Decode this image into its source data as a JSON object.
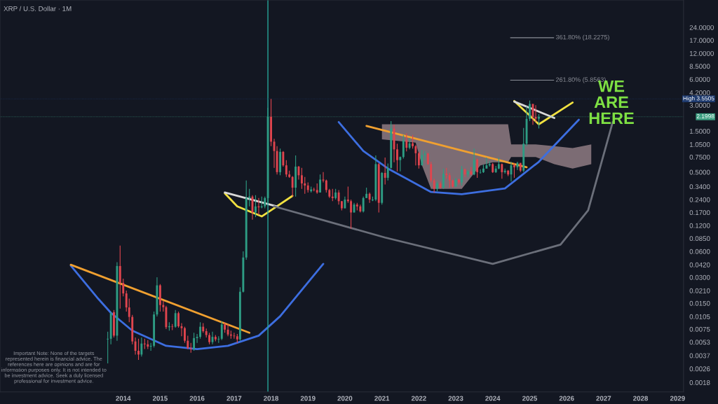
{
  "chart_data": {
    "type": "candlestick",
    "title": "XRP / U.S. Dollar · 1M",
    "x": [
      "2013-08",
      "2013-09",
      "2013-10",
      "2013-11",
      "2013-12",
      "2014-01",
      "2014-02",
      "2014-03",
      "2014-04",
      "2014-05",
      "2014-06",
      "2014-07",
      "2014-08",
      "2014-09",
      "2014-10",
      "2014-11",
      "2014-12",
      "2015-01",
      "2015-02",
      "2015-03",
      "2015-04",
      "2015-05",
      "2015-06",
      "2015-07",
      "2015-08",
      "2015-09",
      "2015-10",
      "2015-11",
      "2015-12",
      "2016-01",
      "2016-02",
      "2016-03",
      "2016-04",
      "2016-05",
      "2016-06",
      "2016-07",
      "2016-08",
      "2016-09",
      "2016-10",
      "2016-11",
      "2016-12",
      "2017-01",
      "2017-02",
      "2017-03",
      "2017-04",
      "2017-05",
      "2017-06",
      "2017-07",
      "2017-08",
      "2017-09",
      "2017-10",
      "2017-11",
      "2017-12",
      "2018-01",
      "2018-02",
      "2018-03",
      "2018-04",
      "2018-05",
      "2018-06",
      "2018-07",
      "2018-08",
      "2018-09",
      "2018-10",
      "2018-11",
      "2018-12",
      "2019-01",
      "2019-02",
      "2019-03",
      "2019-04",
      "2019-05",
      "2019-06",
      "2019-07",
      "2019-08",
      "2019-09",
      "2019-10",
      "2019-11",
      "2019-12",
      "2020-01",
      "2020-02",
      "2020-03",
      "2020-04",
      "2020-05",
      "2020-06",
      "2020-07",
      "2020-08",
      "2020-09",
      "2020-10",
      "2020-11",
      "2020-12",
      "2021-01",
      "2021-02",
      "2021-03",
      "2021-04",
      "2021-05",
      "2021-06",
      "2021-07",
      "2021-08",
      "2021-09",
      "2021-10",
      "2021-11",
      "2021-12",
      "2022-01",
      "2022-02",
      "2022-03",
      "2022-04",
      "2022-05",
      "2022-06",
      "2022-07",
      "2022-08",
      "2022-09",
      "2022-10",
      "2022-11",
      "2022-12",
      "2023-01",
      "2023-02",
      "2023-03",
      "2023-04",
      "2023-05",
      "2023-06",
      "2023-07",
      "2023-08",
      "2023-09",
      "2023-10",
      "2023-11",
      "2023-12",
      "2024-01",
      "2024-02",
      "2024-03",
      "2024-04",
      "2024-05",
      "2024-06",
      "2024-07",
      "2024-08",
      "2024-09",
      "2024-10",
      "2024-11",
      "2024-12",
      "2025-01",
      "2025-02",
      "2025-03",
      "2025-04"
    ],
    "ohlc": [
      [
        0.0057,
        0.007,
        0.003,
        0.0058
      ],
      [
        0.0058,
        0.012,
        0.005,
        0.0115
      ],
      [
        0.0118,
        0.0125,
        0.006,
        0.0063
      ],
      [
        0.0063,
        0.045,
        0.0055,
        0.0406
      ],
      [
        0.0406,
        0.07,
        0.013,
        0.0258
      ],
      [
        0.0258,
        0.029,
        0.018,
        0.0195
      ],
      [
        0.0195,
        0.021,
        0.012,
        0.0134
      ],
      [
        0.0134,
        0.017,
        0.009,
        0.0104
      ],
      [
        0.0104,
        0.011,
        0.005,
        0.0054
      ],
      [
        0.0054,
        0.006,
        0.0038,
        0.0042
      ],
      [
        0.0042,
        0.0058,
        0.0033,
        0.0038
      ],
      [
        0.0038,
        0.006,
        0.0036,
        0.0051
      ],
      [
        0.0051,
        0.0058,
        0.0044,
        0.005
      ],
      [
        0.005,
        0.0056,
        0.0044,
        0.0047
      ],
      [
        0.0047,
        0.0052,
        0.0042,
        0.0048
      ],
      [
        0.0048,
        0.012,
        0.0046,
        0.0111
      ],
      [
        0.0111,
        0.03,
        0.0105,
        0.0242
      ],
      [
        0.0242,
        0.025,
        0.012,
        0.0143
      ],
      [
        0.0143,
        0.016,
        0.012,
        0.0135
      ],
      [
        0.0135,
        0.014,
        0.0075,
        0.0079
      ],
      [
        0.0079,
        0.009,
        0.0072,
        0.0081
      ],
      [
        0.0081,
        0.0086,
        0.0073,
        0.008
      ],
      [
        0.008,
        0.0125,
        0.0078,
        0.0115
      ],
      [
        0.0115,
        0.012,
        0.0078,
        0.0081
      ],
      [
        0.0081,
        0.0088,
        0.0062,
        0.0077
      ],
      [
        0.0077,
        0.008,
        0.0052,
        0.0055
      ],
      [
        0.0055,
        0.0063,
        0.0044,
        0.0045
      ],
      [
        0.0045,
        0.0052,
        0.004,
        0.0044
      ],
      [
        0.0044,
        0.0068,
        0.0042,
        0.0059
      ],
      [
        0.0059,
        0.0066,
        0.0052,
        0.0061
      ],
      [
        0.0061,
        0.009,
        0.0058,
        0.008
      ],
      [
        0.008,
        0.0088,
        0.0068,
        0.0071
      ],
      [
        0.0071,
        0.0076,
        0.006,
        0.0064
      ],
      [
        0.0064,
        0.0068,
        0.005,
        0.0053
      ],
      [
        0.0053,
        0.007,
        0.005,
        0.0061
      ],
      [
        0.0061,
        0.0064,
        0.0054,
        0.0057
      ],
      [
        0.0057,
        0.0062,
        0.0052,
        0.0058
      ],
      [
        0.0058,
        0.0092,
        0.0056,
        0.0085
      ],
      [
        0.0085,
        0.009,
        0.0068,
        0.0074
      ],
      [
        0.0074,
        0.0086,
        0.0062,
        0.0065
      ],
      [
        0.0065,
        0.0072,
        0.0058,
        0.0063
      ],
      [
        0.0063,
        0.0068,
        0.0058,
        0.0062
      ],
      [
        0.0062,
        0.0066,
        0.0052,
        0.0057
      ],
      [
        0.0057,
        0.023,
        0.0055,
        0.0204
      ],
      [
        0.0204,
        0.06,
        0.02,
        0.051
      ],
      [
        0.051,
        0.4,
        0.048,
        0.25
      ],
      [
        0.25,
        0.32,
        0.2,
        0.26
      ],
      [
        0.26,
        0.27,
        0.14,
        0.17
      ],
      [
        0.17,
        0.27,
        0.15,
        0.2
      ],
      [
        0.2,
        0.25,
        0.16,
        0.195
      ],
      [
        0.195,
        0.26,
        0.19,
        0.2
      ],
      [
        0.2,
        0.26,
        0.19,
        0.25
      ],
      [
        0.25,
        2.8,
        0.22,
        2.2
      ],
      [
        2.2,
        3.5505,
        1.0,
        1.13
      ],
      [
        1.13,
        1.22,
        0.56,
        0.88
      ],
      [
        0.88,
        1.0,
        0.47,
        0.5
      ],
      [
        0.5,
        0.94,
        0.46,
        0.86
      ],
      [
        0.86,
        0.88,
        0.58,
        0.6
      ],
      [
        0.6,
        0.69,
        0.44,
        0.47
      ],
      [
        0.47,
        0.52,
        0.43,
        0.44
      ],
      [
        0.44,
        0.45,
        0.26,
        0.33
      ],
      [
        0.33,
        0.78,
        0.26,
        0.58
      ],
      [
        0.58,
        0.59,
        0.41,
        0.46
      ],
      [
        0.46,
        0.56,
        0.32,
        0.37
      ],
      [
        0.37,
        0.44,
        0.28,
        0.35
      ],
      [
        0.35,
        0.38,
        0.29,
        0.31
      ],
      [
        0.3,
        0.34,
        0.29,
        0.315
      ],
      [
        0.315,
        0.33,
        0.3,
        0.31
      ],
      [
        0.31,
        0.37,
        0.28,
        0.29
      ],
      [
        0.29,
        0.47,
        0.29,
        0.41
      ],
      [
        0.41,
        0.5,
        0.38,
        0.4
      ],
      [
        0.4,
        0.41,
        0.29,
        0.31
      ],
      [
        0.31,
        0.32,
        0.25,
        0.26
      ],
      [
        0.26,
        0.32,
        0.23,
        0.25
      ],
      [
        0.25,
        0.32,
        0.24,
        0.29
      ],
      [
        0.29,
        0.31,
        0.21,
        0.23
      ],
      [
        0.23,
        0.23,
        0.18,
        0.19
      ],
      [
        0.19,
        0.26,
        0.19,
        0.24
      ],
      [
        0.24,
        0.34,
        0.22,
        0.23
      ],
      [
        0.23,
        0.24,
        0.11,
        0.17
      ],
      [
        0.17,
        0.22,
        0.17,
        0.21
      ],
      [
        0.21,
        0.22,
        0.18,
        0.2
      ],
      [
        0.2,
        0.21,
        0.17,
        0.175
      ],
      [
        0.175,
        0.26,
        0.17,
        0.25
      ],
      [
        0.25,
        0.33,
        0.25,
        0.28
      ],
      [
        0.28,
        0.29,
        0.22,
        0.24
      ],
      [
        0.235,
        0.26,
        0.23,
        0.24
      ],
      [
        0.24,
        0.78,
        0.23,
        0.62
      ],
      [
        0.62,
        0.64,
        0.17,
        0.22
      ],
      [
        0.22,
        0.5,
        0.21,
        0.49
      ],
      [
        0.49,
        0.74,
        0.36,
        0.43
      ],
      [
        0.43,
        0.63,
        0.4,
        0.56
      ],
      [
        0.56,
        1.96,
        0.55,
        1.6
      ],
      [
        1.6,
        1.77,
        0.65,
        0.92
      ],
      [
        0.92,
        1.07,
        0.51,
        0.69
      ],
      [
        0.69,
        0.76,
        0.51,
        0.75
      ],
      [
        0.75,
        1.35,
        0.72,
        1.17
      ],
      [
        1.17,
        1.41,
        0.87,
        0.96
      ],
      [
        0.96,
        1.25,
        0.92,
        1.08
      ],
      [
        1.08,
        1.35,
        0.94,
        1.0
      ],
      [
        1.0,
        1.03,
        0.6,
        0.83
      ],
      [
        0.83,
        0.86,
        0.55,
        0.6
      ],
      [
        0.6,
        0.91,
        0.6,
        0.79
      ],
      [
        0.79,
        0.88,
        0.69,
        0.82
      ],
      [
        0.82,
        0.84,
        0.61,
        0.62
      ],
      [
        0.62,
        0.66,
        0.38,
        0.4
      ],
      [
        0.4,
        0.42,
        0.29,
        0.32
      ],
      [
        0.32,
        0.39,
        0.3,
        0.37
      ],
      [
        0.37,
        0.39,
        0.32,
        0.33
      ],
      [
        0.33,
        0.55,
        0.32,
        0.48
      ],
      [
        0.48,
        0.56,
        0.42,
        0.46
      ],
      [
        0.46,
        0.49,
        0.33,
        0.4
      ],
      [
        0.4,
        0.41,
        0.33,
        0.34
      ],
      [
        0.34,
        0.43,
        0.34,
        0.41
      ],
      [
        0.41,
        0.42,
        0.36,
        0.38
      ],
      [
        0.38,
        0.59,
        0.35,
        0.54
      ],
      [
        0.54,
        0.55,
        0.44,
        0.47
      ],
      [
        0.47,
        0.53,
        0.44,
        0.51
      ],
      [
        0.51,
        0.57,
        0.46,
        0.47
      ],
      [
        0.47,
        0.94,
        0.46,
        0.7
      ],
      [
        0.7,
        0.72,
        0.43,
        0.5
      ],
      [
        0.495,
        0.54,
        0.48,
        0.5
      ],
      [
        0.5,
        0.61,
        0.49,
        0.55
      ],
      [
        0.55,
        0.74,
        0.55,
        0.6
      ],
      [
        0.6,
        0.67,
        0.58,
        0.62
      ],
      [
        0.62,
        0.64,
        0.49,
        0.5
      ],
      [
        0.5,
        0.59,
        0.49,
        0.55
      ],
      [
        0.55,
        0.74,
        0.54,
        0.62
      ],
      [
        0.62,
        0.63,
        0.42,
        0.5
      ],
      [
        0.5,
        0.55,
        0.48,
        0.52
      ],
      [
        0.52,
        0.53,
        0.45,
        0.47
      ],
      [
        0.47,
        0.66,
        0.39,
        0.6
      ],
      [
        0.6,
        0.64,
        0.43,
        0.57
      ],
      [
        0.57,
        0.66,
        0.53,
        0.64
      ],
      [
        0.64,
        0.64,
        0.5,
        0.52
      ],
      [
        0.52,
        1.63,
        0.5,
        1.07
      ],
      [
        1.07,
        2.9,
        1.0,
        2.08
      ],
      [
        2.08,
        3.4,
        1.96,
        3.1
      ],
      [
        3.1,
        3.1,
        1.77,
        2.19
      ],
      [
        2.19,
        3.0,
        1.9,
        2.09
      ],
      [
        2.09,
        2.36,
        1.61,
        2.1998
      ]
    ],
    "series": [
      {
        "type": "line",
        "color": "#3d6ee0",
        "x": [
          "2012-08",
          "2013-05",
          "2013-09",
          "2014-04",
          "2015-03",
          "2016-01",
          "2016-11",
          "2017-09",
          "2018-04",
          "2019-06"
        ],
        "values": [
          0.041,
          0.0168,
          0.0116,
          0.0072,
          0.0048,
          0.0044,
          0.0048,
          0.0063,
          0.0106,
          0.043
        ]
      },
      {
        "type": "line",
        "color": "#f0a030",
        "x": [
          "2012-08",
          "2017-06"
        ],
        "values": [
          0.042,
          0.0068
        ]
      },
      {
        "type": "line",
        "color": "#3d6ee0",
        "x": [
          "2019-11",
          "2020-07",
          "2021-03",
          "2022-05",
          "2023-03",
          "2024-05",
          "2025-04",
          "2026-05"
        ],
        "values": [
          1.91,
          0.88,
          0.551,
          0.294,
          0.277,
          0.323,
          0.66,
          2.03
        ]
      },
      {
        "type": "line",
        "color": "#f0a030",
        "x": [
          "2020-08",
          "2024-12"
        ],
        "values": [
          1.72,
          0.57
        ]
      },
      {
        "type": "line",
        "color": "#f0e040",
        "x": [
          "2016-10",
          "2017-02",
          "2017-10",
          "2018-08"
        ],
        "values": [
          0.284,
          0.2,
          0.153,
          0.265
        ]
      },
      {
        "type": "line",
        "color": "#d8d8d8",
        "x": [
          "2016-10",
          "2018-03"
        ],
        "values": [
          0.29,
          0.2
        ]
      },
      {
        "type": "line",
        "color": "#f0e040",
        "x": [
          "2024-08",
          "2025-04",
          "2026-03"
        ],
        "values": [
          3.36,
          1.8,
          3.22
        ]
      },
      {
        "type": "line",
        "color": "#d8d8d8",
        "x": [
          "2024-08",
          "2025-09"
        ],
        "values": [
          3.3,
          2.13
        ]
      },
      {
        "type": "line",
        "color": "#6b6f7a",
        "x": [
          "2018-02",
          "2021-02",
          "2024-01",
          "2025-11",
          "2026-08",
          "2027-04"
        ],
        "values": [
          0.2,
          0.087,
          0.043,
          0.072,
          0.18,
          1.91
        ]
      }
    ],
    "log": true,
    "ylim": [
      0.0014,
      50
    ],
    "yticks": [
      {
        "value": 24,
        "label": "24.0000"
      },
      {
        "value": 17,
        "label": "17.0000"
      },
      {
        "value": 12,
        "label": "12.0000"
      },
      {
        "value": 8.5,
        "label": "8.5000"
      },
      {
        "value": 6,
        "label": "6.0000"
      },
      {
        "value": 4.2,
        "label": "4.2000"
      },
      {
        "value": 3,
        "label": "3.0000"
      },
      {
        "value": 1.5,
        "label": "1.5000"
      },
      {
        "value": 1.05,
        "label": "1.0500"
      },
      {
        "value": 0.75,
        "label": "0.7500"
      },
      {
        "value": 0.5,
        "label": "0.5000"
      },
      {
        "value": 0.34,
        "label": "0.3400"
      },
      {
        "value": 0.24,
        "label": "0.2400"
      },
      {
        "value": 0.17,
        "label": "0.1700"
      },
      {
        "value": 0.12,
        "label": "0.1200"
      },
      {
        "value": 0.085,
        "label": "0.0850"
      },
      {
        "value": 0.06,
        "label": "0.0600"
      },
      {
        "value": 0.042,
        "label": "0.0420"
      },
      {
        "value": 0.03,
        "label": "0.0300"
      },
      {
        "value": 0.021,
        "label": "0.0210"
      },
      {
        "value": 0.015,
        "label": "0.0150"
      },
      {
        "value": 0.0105,
        "label": "0.0105"
      },
      {
        "value": 0.0075,
        "label": "0.0075"
      },
      {
        "value": 0.0053,
        "label": "0.0053"
      },
      {
        "value": 0.0037,
        "label": "0.0037"
      },
      {
        "value": 0.0026,
        "label": "0.0026"
      },
      {
        "value": 0.0018,
        "label": "0.0018"
      }
    ],
    "xlim": [
      "2010-09",
      "2029-03"
    ],
    "xticks": [
      {
        "value": "2014-01",
        "label": "2014"
      },
      {
        "value": "2015-01",
        "label": "2015"
      },
      {
        "value": "2016-01",
        "label": "2016"
      },
      {
        "value": "2017-01",
        "label": "2017"
      },
      {
        "value": "2018-01",
        "label": "2018"
      },
      {
        "value": "2019-01",
        "label": "2019"
      },
      {
        "value": "2020-01",
        "label": "2020"
      },
      {
        "value": "2021-01",
        "label": "2021"
      },
      {
        "value": "2022-01",
        "label": "2022"
      },
      {
        "value": "2023-01",
        "label": "2023"
      },
      {
        "value": "2024-01",
        "label": "2024"
      },
      {
        "value": "2025-01",
        "label": "2025"
      },
      {
        "value": "2026-01",
        "label": "2026"
      },
      {
        "value": "2027-01",
        "label": "2027"
      },
      {
        "value": "2028-01",
        "label": "2028"
      },
      {
        "value": "2029-01",
        "label": "2029"
      }
    ],
    "ref_lines": [
      {
        "axis": "x",
        "value": "2017-12",
        "color": "#26a69a"
      },
      {
        "axis": "y",
        "value": 3.5505,
        "label": "High 3.5505",
        "color": "#1e3a6e",
        "line_style": "dotted"
      },
      {
        "axis": "y",
        "value": 2.1998,
        "label": "2.1998",
        "color": "#3c9f82",
        "line_style": "dotted"
      },
      {
        "axis": "y",
        "value": 18.2275,
        "label": "361.80% (18.2275)",
        "color": "#8a8d96",
        "line_style": "solid"
      },
      {
        "axis": "y",
        "value": 5.8563,
        "label": "261.80% (5.8563)",
        "color": "#8a8d96",
        "line_style": "solid"
      }
    ],
    "annotations": [
      "WE\nARE\nHERE",
      "Important Note: None of the targets represented herein is financial advice. The references here are opinions and are for information purposes only. It is not intended to be investment advice. Seek a duly licensed professional for investment advice."
    ],
    "grid": false
  }
}
